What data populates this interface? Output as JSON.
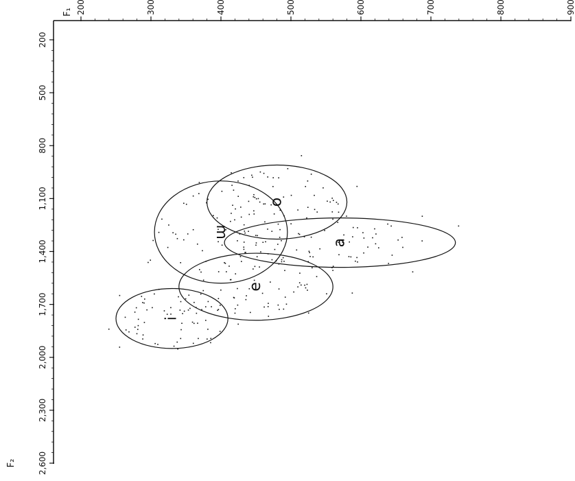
{
  "chart_data": {
    "type": "scatter",
    "title": "",
    "x_axis": {
      "label": "F₁",
      "range": [
        200,
        900
      ],
      "ticks": [
        "200",
        "300",
        "400",
        "500",
        "600",
        "700",
        "800",
        "900"
      ]
    },
    "y_axis": {
      "label": "F₂",
      "range": [
        200,
        2600
      ],
      "ticks": [
        "200",
        "500",
        "800",
        "1,100",
        "1,400",
        "1,700",
        "2,000",
        "2,300",
        "2,600"
      ]
    },
    "grid": false,
    "rotation": "rotated 90° counterclockwise",
    "clusters": [
      {
        "label": "o",
        "f1_center": 480,
        "f2_center": 1120,
        "f1_radius": 100,
        "f2_radius": 210
      },
      {
        "label": "ɯ",
        "f1_center": 400,
        "f2_center": 1290,
        "f1_radius": 95,
        "f2_radius": 290
      },
      {
        "label": "a",
        "f1_center": 570,
        "f2_center": 1350,
        "f1_radius": 165,
        "f2_radius": 140
      },
      {
        "label": "e",
        "f1_center": 450,
        "f2_center": 1600,
        "f1_radius": 110,
        "f2_radius": 190
      },
      {
        "label": "i",
        "f1_center": 330,
        "f2_center": 1780,
        "f1_radius": 80,
        "f2_radius": 170
      }
    ]
  }
}
